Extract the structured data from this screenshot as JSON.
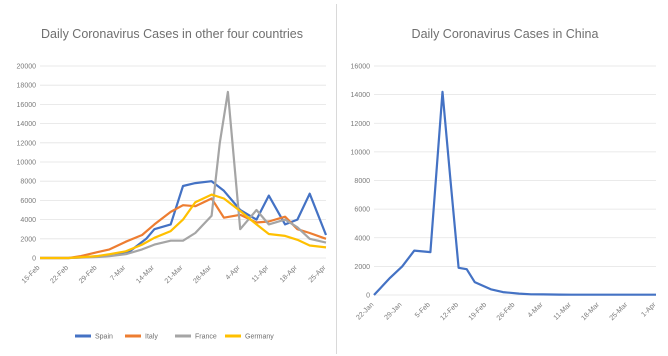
{
  "chart_data": [
    {
      "type": "line",
      "title": "Daily Coronavirus Cases in other four countries",
      "xlabel": "",
      "ylabel": "",
      "ylim": [
        0,
        20000
      ],
      "yticks": [
        "0",
        "2000",
        "4000",
        "6000",
        "8000",
        "10000",
        "12000",
        "14000",
        "16000",
        "18000",
        "20000"
      ],
      "x_ticks": [
        "15-Feb",
        "22-Feb",
        "29-Feb",
        "7-Mar",
        "14-Mar",
        "21-Mar",
        "28-Mar",
        "4-Apr",
        "11-Apr",
        "18-Apr",
        "25-Apr"
      ],
      "x_range": [
        0,
        70
      ],
      "grid": true,
      "legend_position": "bottom",
      "series": [
        {
          "name": "Spain",
          "color": "#4472C4",
          "x": [
            0,
            7,
            12,
            17,
            22,
            26,
            28,
            32,
            35,
            38,
            42,
            45,
            49,
            53,
            56,
            60,
            63,
            66,
            70
          ],
          "y": [
            0,
            0,
            100,
            300,
            700,
            2000,
            3000,
            3500,
            7500,
            7800,
            8000,
            7000,
            5000,
            4000,
            6500,
            3500,
            4000,
            6700,
            2400
          ]
        },
        {
          "name": "Italy",
          "color": "#ED7D31",
          "x": [
            0,
            7,
            10,
            14,
            17,
            21,
            25,
            28,
            32,
            35,
            38,
            42,
            45,
            49,
            53,
            56,
            60,
            63,
            66,
            70
          ],
          "y": [
            0,
            0,
            200,
            600,
            900,
            1700,
            2400,
            3500,
            4800,
            5500,
            5400,
            6200,
            4200,
            4500,
            3700,
            3800,
            4300,
            3000,
            2600,
            2000
          ]
        },
        {
          "name": "France",
          "color": "#A5A5A5",
          "x": [
            0,
            7,
            14,
            17,
            21,
            25,
            28,
            32,
            35,
            38,
            42,
            44,
            46,
            49,
            53,
            56,
            60,
            63,
            66,
            70
          ],
          "y": [
            0,
            0,
            100,
            200,
            400,
            900,
            1400,
            1800,
            1800,
            2600,
            4400,
            12000,
            17300,
            3000,
            5000,
            3500,
            4000,
            3200,
            2000,
            1600
          ]
        },
        {
          "name": "Germany",
          "color": "#FFC000",
          "x": [
            0,
            7,
            14,
            17,
            21,
            25,
            28,
            32,
            35,
            38,
            42,
            45,
            49,
            53,
            56,
            60,
            63,
            66,
            70
          ],
          "y": [
            0,
            0,
            200,
            400,
            700,
            1400,
            2100,
            2800,
            4000,
            5800,
            6600,
            6200,
            4900,
            3500,
            2500,
            2300,
            1900,
            1300,
            1100
          ]
        }
      ]
    },
    {
      "type": "line",
      "title": "Daily Coronavirus Cases in China",
      "xlabel": "",
      "ylabel": "",
      "ylim": [
        0,
        16000
      ],
      "yticks": [
        "0",
        "2000",
        "4000",
        "6000",
        "8000",
        "10000",
        "12000",
        "14000",
        "16000"
      ],
      "x_ticks": [
        "22-Jan",
        "29-Jan",
        "5-Feb",
        "12-Feb",
        "19-Feb",
        "26-Feb",
        "4-Mar",
        "11-Mar",
        "18-Mar",
        "25-Mar",
        "1-Apr"
      ],
      "x_range": [
        0,
        70
      ],
      "grid": true,
      "series": [
        {
          "name": "",
          "color": "#4472C4",
          "x": [
            0,
            4,
            7,
            10,
            14,
            17,
            19,
            21,
            23,
            25,
            29,
            32,
            36,
            39,
            42,
            46,
            49,
            53,
            56,
            60,
            63,
            66,
            70
          ],
          "y": [
            0,
            1200,
            2000,
            3100,
            3000,
            14200,
            8000,
            1900,
            1800,
            900,
            400,
            200,
            100,
            50,
            40,
            30,
            20,
            20,
            20,
            20,
            20,
            20,
            20
          ]
        }
      ]
    }
  ]
}
